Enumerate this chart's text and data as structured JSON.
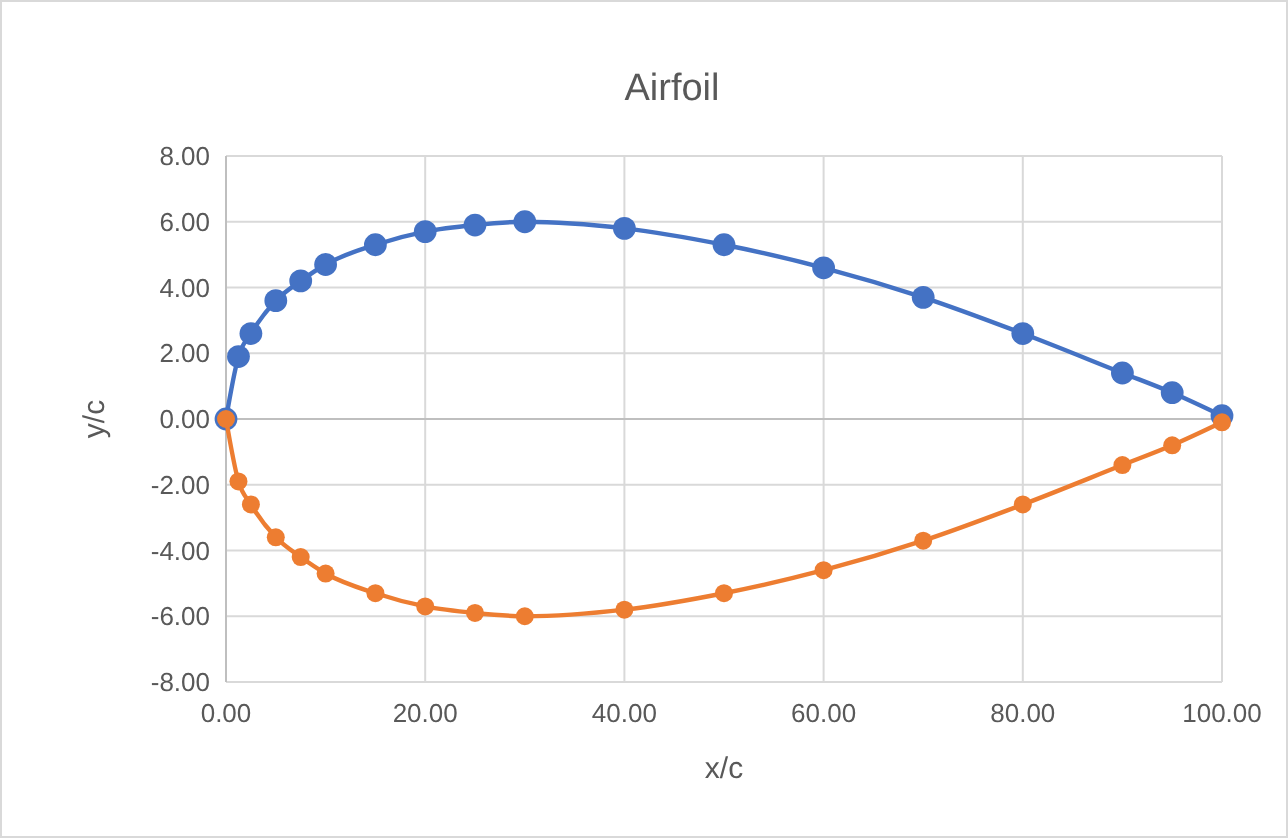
{
  "chart_data": {
    "type": "line",
    "title": "Airfoil",
    "xlabel": "x/c",
    "ylabel": "y/c",
    "x": [
      0,
      1.25,
      2.5,
      5,
      7.5,
      10,
      15,
      20,
      25,
      30,
      40,
      50,
      60,
      70,
      80,
      90,
      95,
      100
    ],
    "series": [
      {
        "color": "#4472c4",
        "values": [
          0,
          1.9,
          2.6,
          3.6,
          4.2,
          4.7,
          5.3,
          5.7,
          5.9,
          6.0,
          5.8,
          5.3,
          4.6,
          3.7,
          2.6,
          1.4,
          0.8,
          0.1
        ]
      },
      {
        "color": "#ed7d31",
        "values": [
          0,
          -1.9,
          -2.6,
          -3.6,
          -4.2,
          -4.7,
          -5.3,
          -5.7,
          -5.9,
          -6.0,
          -5.8,
          -5.3,
          -4.6,
          -3.7,
          -2.6,
          -1.4,
          -0.8,
          -0.1
        ]
      }
    ],
    "xlim": [
      0,
      100
    ],
    "xticks": [
      {
        "value": 0,
        "label": "0.00"
      },
      {
        "value": 20,
        "label": "20.00"
      },
      {
        "value": 40,
        "label": "40.00"
      },
      {
        "value": 60,
        "label": "60.00"
      },
      {
        "value": 80,
        "label": "80.00"
      },
      {
        "value": 100,
        "label": "100.00"
      }
    ],
    "ylim": [
      -8,
      8
    ],
    "yticks": [
      {
        "value": -8,
        "label": "-8.00"
      },
      {
        "value": -6,
        "label": "-6.00"
      },
      {
        "value": -4,
        "label": "-4.00"
      },
      {
        "value": -2,
        "label": "-2.00"
      },
      {
        "value": 0,
        "label": "0.00"
      },
      {
        "value": 2,
        "label": "2.00"
      },
      {
        "value": 4,
        "label": "4.00"
      },
      {
        "value": 6,
        "label": "6.00"
      },
      {
        "value": 8,
        "label": "8.00"
      }
    ],
    "grid": true,
    "marker": "circle",
    "line_style": "solid"
  }
}
